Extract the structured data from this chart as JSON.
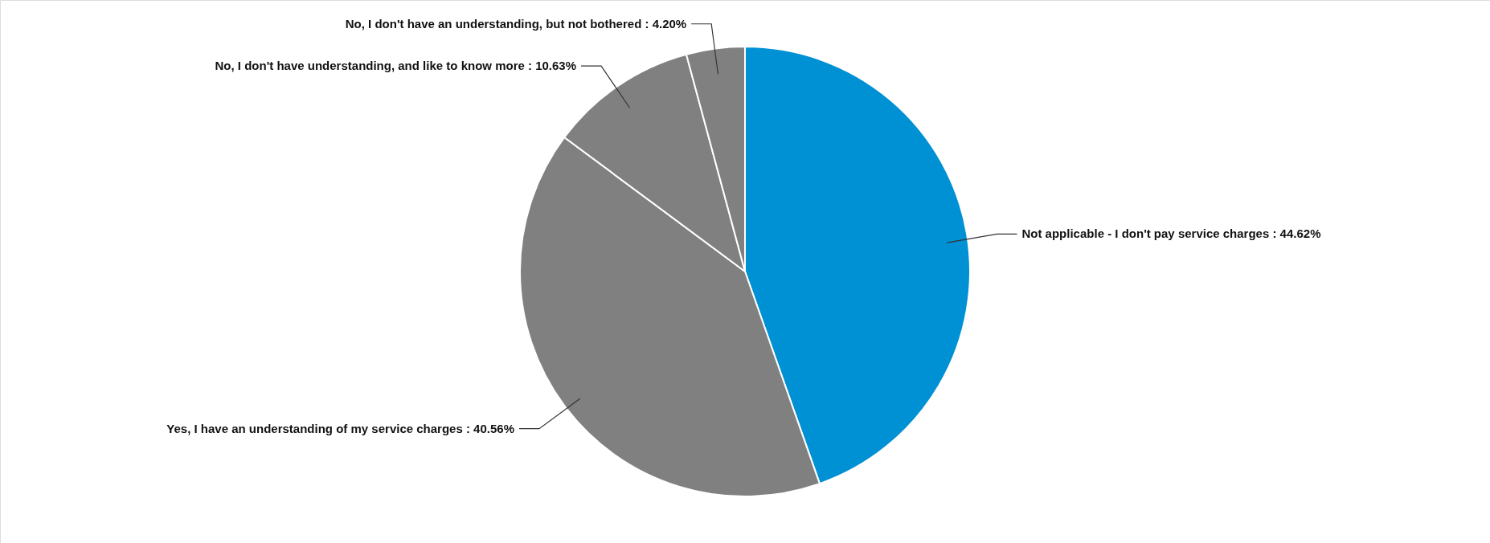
{
  "chart_data": {
    "type": "pie",
    "categories": [
      "Not applicable - I don't pay service charges ",
      "Yes, I have an understanding of my service charges ",
      "No, I don't have understanding, and like to know more",
      "No, I don't have an understanding, but not bothered"
    ],
    "values": [
      44.62,
      40.56,
      10.63,
      4.2
    ],
    "value_labels": [
      "44.62%",
      "40.56%",
      "10.63%",
      "4.20%"
    ],
    "colors": [
      "#0090d4",
      "#808080",
      "#808080",
      "#808080"
    ]
  }
}
